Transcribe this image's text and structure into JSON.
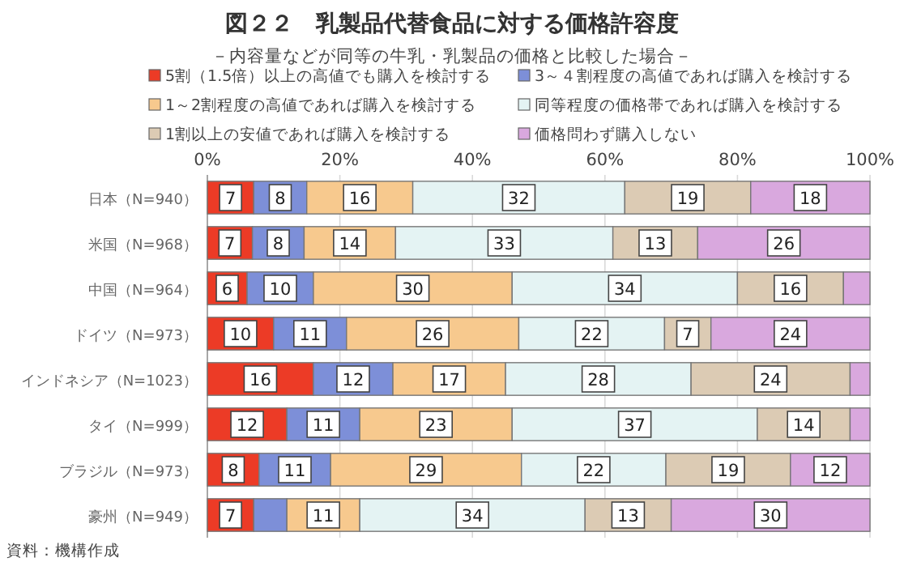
{
  "chart_data": {
    "type": "bar",
    "orientation": "horizontal",
    "stacked": true,
    "title": "図２２　乳製品代替食品に対する価格許容度",
    "subtitle": "－内容量などが同等の牛乳・乳製品の価格と比較した場合－",
    "categories": [
      "日本（N=940）",
      "米国（N=968）",
      "中国（N=964）",
      "ドイツ（N=973）",
      "インドネシア（N=1023）",
      "タイ（N=999）",
      "ブラジル（N=973）",
      "豪州（N=949）"
    ],
    "xlim": [
      0,
      100
    ],
    "xticks": [
      {
        "value": 0,
        "label": "0%"
      },
      {
        "value": 20,
        "label": "20%"
      },
      {
        "value": 40,
        "label": "40%"
      },
      {
        "value": 60,
        "label": "60%"
      },
      {
        "value": 80,
        "label": "80%"
      },
      {
        "value": 100,
        "label": "100%"
      }
    ],
    "grid": "x",
    "legend": "top",
    "series": [
      {
        "name": "5割（1.5倍）以上の高値でも購入を検討する",
        "color": "#ec3b26",
        "values": [
          7,
          6.8,
          6,
          10,
          16,
          12,
          7.8,
          7
        ],
        "value_labels": [
          "7",
          "7",
          "6",
          "10",
          "16",
          "12",
          "8",
          "7"
        ]
      },
      {
        "name": "3～４割程度の高値であれば購入を検討する",
        "color": "#7d8fd8",
        "values": [
          8,
          7.8,
          10,
          11,
          12,
          11,
          10.8,
          5
        ],
        "value_labels": [
          "8",
          "8",
          "10",
          "11",
          "12",
          "11",
          "11",
          null
        ]
      },
      {
        "name": "1～2割程度の高値であれば購入を検討する",
        "color": "#f7c98e",
        "values": [
          16,
          13.8,
          30,
          26,
          17,
          23,
          28.8,
          11
        ],
        "value_labels": [
          "16",
          "14",
          "30",
          "26",
          "17",
          "23",
          "29",
          "11"
        ]
      },
      {
        "name": "同等程度の価格帯であれば購入を検討する",
        "color": "#e4f3f3",
        "values": [
          32,
          32.8,
          34,
          22,
          28,
          37,
          21.8,
          34
        ],
        "value_labels": [
          "32",
          "33",
          "34",
          "22",
          "28",
          "37",
          "22",
          "34"
        ]
      },
      {
        "name": "1割以上の安値であれば購入を検討する",
        "color": "#dccbb4",
        "values": [
          19,
          12.8,
          16,
          7,
          24,
          14,
          18.8,
          13
        ],
        "value_labels": [
          "19",
          "13",
          "16",
          "7",
          "24",
          "14",
          "19",
          "13"
        ]
      },
      {
        "name": "価格問わず購入しない",
        "color": "#d9a8de",
        "values": [
          18,
          26,
          4,
          24,
          3,
          3,
          12,
          30
        ],
        "value_labels": [
          "18",
          "26",
          null,
          "24",
          null,
          null,
          "12",
          "30"
        ]
      }
    ],
    "annotations": [
      "資料：機構作成"
    ]
  }
}
